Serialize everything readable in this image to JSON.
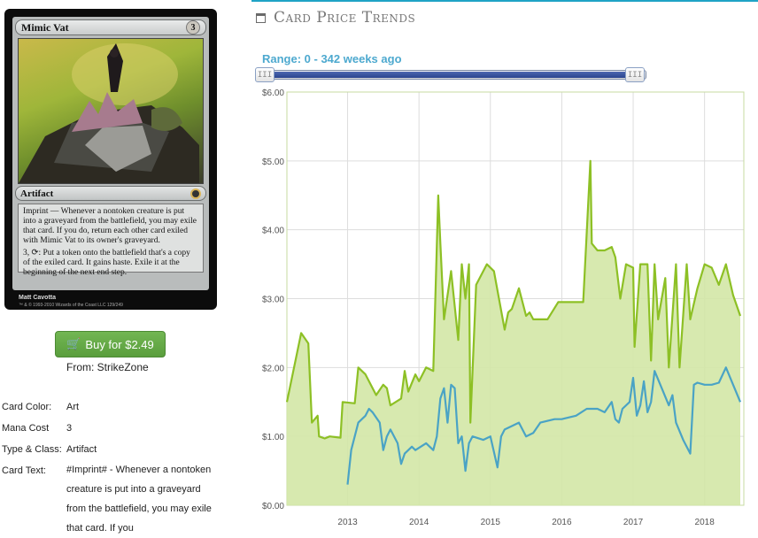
{
  "card": {
    "name": "Mimic Vat",
    "mana_cost_symbol": "3",
    "type_line": "Artifact",
    "rules_text_1": "Imprint — Whenever a nontoken creature is put into a graveyard from the battlefield, you may exile that card. If you do, return each other card exiled with Mimic Vat to its owner's graveyard.",
    "rules_text_2": "3, ⟳: Put a token onto the battlefield that's a copy of the exiled card. It gains haste. Exile it at the beginning of the next end step.",
    "artist": "Matt Cavotta",
    "copyright": "™ & © 1993-2010 Wizards of the Coast LLC 129/249"
  },
  "buy": {
    "label": "Buy for $2.49",
    "icon": "cart-icon"
  },
  "vendor": "From: StrikeZone",
  "attributes": {
    "color_label": "Card Color:",
    "color_value": "Art",
    "mana_label": "Mana Cost",
    "mana_value": "3",
    "type_label": "Type & Class:",
    "type_value": "Artifact",
    "text_label": "Card Text:",
    "text_value": "#Imprint# - Whenever a nontoken creature is put into a graveyard from the battlefield, you may exile that card. If you"
  },
  "trends": {
    "title": "Card Price Trends",
    "icon": "calendar-icon",
    "range_label": "Range: 0 - 342 weeks ago",
    "range_min": 0,
    "range_max": 342,
    "slider_handle_glyph": "III"
  },
  "colors": {
    "accent": "#1fa3c6",
    "retail_line": "#8dc025",
    "retail_fill": "#d3e7a6",
    "buylist_line": "#4aa3c5",
    "button": "#5ea845",
    "range_text": "#4da9cf"
  },
  "chart_data": {
    "type": "area",
    "ylim": [
      0,
      6
    ],
    "xlim": [
      2012.15,
      2018.55
    ],
    "yticks": [
      "$0.00",
      "$1.00",
      "$2.00",
      "$3.00",
      "$4.00",
      "$5.00",
      "$6.00"
    ],
    "xticks": [
      "2013",
      "2014",
      "2015",
      "2016",
      "2017",
      "2018"
    ],
    "grid": true,
    "series": [
      {
        "key": "retail",
        "x": [
          2012.15,
          2012.35,
          2012.45,
          2012.5,
          2012.58,
          2012.6,
          2012.68,
          2012.75,
          2012.9,
          2012.93,
          2013.1,
          2013.15,
          2013.25,
          2013.4,
          2013.5,
          2013.55,
          2013.6,
          2013.75,
          2013.8,
          2013.85,
          2013.95,
          2014.0,
          2014.1,
          2014.2,
          2014.27,
          2014.3,
          2014.35,
          2014.45,
          2014.55,
          2014.6,
          2014.65,
          2014.7,
          2014.72,
          2014.8,
          2014.95,
          2015.05,
          2015.2,
          2015.25,
          2015.3,
          2015.4,
          2015.5,
          2015.55,
          2015.6,
          2015.8,
          2015.95,
          2016.0,
          2016.2,
          2016.3,
          2016.4,
          2016.42,
          2016.5,
          2016.6,
          2016.7,
          2016.75,
          2016.82,
          2016.9,
          2017.0,
          2017.02,
          2017.1,
          2017.2,
          2017.25,
          2017.3,
          2017.35,
          2017.45,
          2017.5,
          2017.6,
          2017.65,
          2017.75,
          2017.8,
          2017.9,
          2018.0,
          2018.1,
          2018.2,
          2018.3,
          2018.4,
          2018.5
        ],
        "values": [
          1.5,
          2.5,
          2.35,
          1.2,
          1.3,
          1.0,
          0.97,
          1.0,
          0.98,
          1.5,
          1.48,
          2.0,
          1.9,
          1.6,
          1.75,
          1.7,
          1.45,
          1.55,
          1.95,
          1.65,
          1.9,
          1.8,
          2.0,
          1.95,
          4.5,
          3.8,
          2.7,
          3.4,
          2.4,
          3.5,
          3.0,
          3.5,
          1.2,
          3.2,
          3.5,
          3.4,
          2.55,
          2.8,
          2.85,
          3.15,
          2.75,
          2.8,
          2.7,
          2.7,
          2.95,
          2.95,
          2.95,
          2.95,
          5.0,
          3.8,
          3.7,
          3.7,
          3.75,
          3.6,
          3.0,
          3.5,
          3.45,
          2.3,
          3.5,
          3.5,
          2.1,
          3.5,
          2.7,
          3.3,
          2.0,
          3.5,
          2.0,
          3.5,
          2.7,
          3.15,
          3.5,
          3.45,
          3.2,
          3.5,
          3.05,
          2.75
        ]
      },
      {
        "key": "buylist",
        "x": [
          2013.0,
          2013.05,
          2013.1,
          2013.15,
          2013.25,
          2013.3,
          2013.35,
          2013.45,
          2013.5,
          2013.55,
          2013.6,
          2013.7,
          2013.75,
          2013.8,
          2013.9,
          2013.95,
          2014.1,
          2014.2,
          2014.25,
          2014.3,
          2014.35,
          2014.4,
          2014.45,
          2014.5,
          2014.55,
          2014.6,
          2014.65,
          2014.7,
          2014.75,
          2014.9,
          2015.0,
          2015.1,
          2015.15,
          2015.2,
          2015.3,
          2015.4,
          2015.5,
          2015.6,
          2015.7,
          2015.9,
          2016.0,
          2016.2,
          2016.35,
          2016.5,
          2016.6,
          2016.7,
          2016.75,
          2016.8,
          2016.85,
          2016.95,
          2017.0,
          2017.05,
          2017.1,
          2017.15,
          2017.2,
          2017.25,
          2017.3,
          2017.4,
          2017.5,
          2017.55,
          2017.6,
          2017.7,
          2017.8,
          2017.85,
          2017.9,
          2018.0,
          2018.1,
          2018.2,
          2018.3,
          2018.4,
          2018.5
        ],
        "values": [
          0.3,
          0.8,
          1.0,
          1.2,
          1.3,
          1.4,
          1.35,
          1.2,
          0.8,
          1.0,
          1.1,
          0.9,
          0.6,
          0.75,
          0.85,
          0.8,
          0.9,
          0.8,
          1.0,
          1.55,
          1.7,
          1.2,
          1.75,
          1.7,
          0.9,
          1.0,
          0.5,
          0.9,
          1.0,
          0.95,
          1.0,
          0.55,
          1.0,
          1.1,
          1.15,
          1.2,
          1.0,
          1.05,
          1.2,
          1.25,
          1.25,
          1.3,
          1.4,
          1.4,
          1.35,
          1.5,
          1.25,
          1.2,
          1.4,
          1.5,
          1.85,
          1.3,
          1.45,
          1.8,
          1.35,
          1.5,
          1.95,
          1.7,
          1.45,
          1.6,
          1.2,
          0.95,
          0.75,
          1.75,
          1.78,
          1.75,
          1.75,
          1.78,
          2.0,
          1.75,
          1.5
        ]
      }
    ]
  }
}
